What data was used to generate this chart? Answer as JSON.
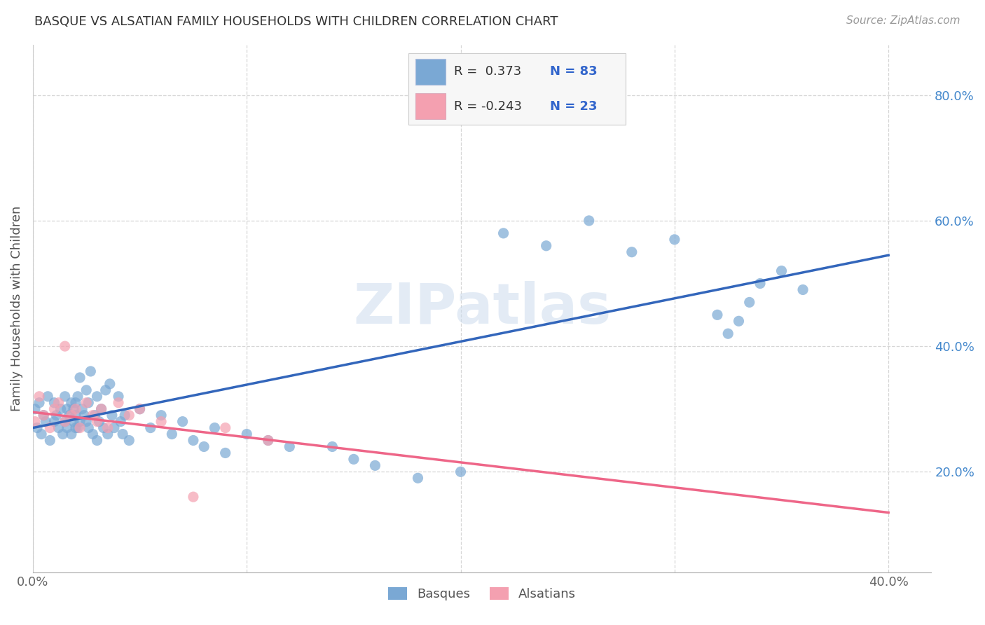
{
  "title": "BASQUE VS ALSATIAN FAMILY HOUSEHOLDS WITH CHILDREN CORRELATION CHART",
  "source": "Source: ZipAtlas.com",
  "ylabel": "Family Households with Children",
  "xlim": [
    0.0,
    0.42
  ],
  "ylim": [
    0.04,
    0.88
  ],
  "x_ticks": [
    0.0,
    0.1,
    0.2,
    0.3,
    0.4
  ],
  "x_tick_labels": [
    "0.0%",
    "",
    "",
    "",
    "40.0%"
  ],
  "y_ticks": [
    0.2,
    0.4,
    0.6,
    0.8
  ],
  "y_tick_labels": [
    "20.0%",
    "40.0%",
    "60.0%",
    "80.0%"
  ],
  "basque_color": "#7aa8d4",
  "alsatian_color": "#f4a0b0",
  "trend_basque_color": "#3366bb",
  "trend_alsatian_color": "#ee6688",
  "watermark": "ZIPatlas",
  "basque_x": [
    0.001,
    0.002,
    0.003,
    0.004,
    0.005,
    0.006,
    0.007,
    0.008,
    0.01,
    0.01,
    0.011,
    0.012,
    0.013,
    0.014,
    0.015,
    0.015,
    0.016,
    0.016,
    0.017,
    0.018,
    0.018,
    0.019,
    0.019,
    0.02,
    0.02,
    0.02,
    0.021,
    0.021,
    0.022,
    0.022,
    0.023,
    0.024,
    0.025,
    0.025,
    0.026,
    0.026,
    0.027,
    0.028,
    0.029,
    0.03,
    0.03,
    0.031,
    0.032,
    0.033,
    0.034,
    0.035,
    0.036,
    0.037,
    0.038,
    0.04,
    0.041,
    0.042,
    0.043,
    0.045,
    0.05,
    0.055,
    0.06,
    0.065,
    0.07,
    0.075,
    0.08,
    0.085,
    0.09,
    0.1,
    0.11,
    0.12,
    0.14,
    0.15,
    0.16,
    0.18,
    0.2,
    0.22,
    0.24,
    0.26,
    0.28,
    0.3,
    0.32,
    0.325,
    0.33,
    0.335,
    0.34,
    0.35,
    0.36
  ],
  "basque_y": [
    0.3,
    0.27,
    0.31,
    0.26,
    0.29,
    0.28,
    0.32,
    0.25,
    0.31,
    0.28,
    0.29,
    0.27,
    0.3,
    0.26,
    0.32,
    0.28,
    0.3,
    0.27,
    0.29,
    0.26,
    0.31,
    0.28,
    0.3,
    0.27,
    0.29,
    0.31,
    0.32,
    0.27,
    0.35,
    0.28,
    0.3,
    0.29,
    0.28,
    0.33,
    0.27,
    0.31,
    0.36,
    0.26,
    0.29,
    0.25,
    0.32,
    0.28,
    0.3,
    0.27,
    0.33,
    0.26,
    0.34,
    0.29,
    0.27,
    0.32,
    0.28,
    0.26,
    0.29,
    0.25,
    0.3,
    0.27,
    0.29,
    0.26,
    0.28,
    0.25,
    0.24,
    0.27,
    0.23,
    0.26,
    0.25,
    0.24,
    0.24,
    0.22,
    0.21,
    0.19,
    0.2,
    0.58,
    0.56,
    0.6,
    0.55,
    0.57,
    0.45,
    0.42,
    0.44,
    0.47,
    0.5,
    0.52,
    0.49
  ],
  "alsatian_x": [
    0.001,
    0.003,
    0.005,
    0.008,
    0.01,
    0.012,
    0.015,
    0.015,
    0.018,
    0.02,
    0.022,
    0.025,
    0.028,
    0.03,
    0.032,
    0.035,
    0.04,
    0.045,
    0.05,
    0.06,
    0.075,
    0.09,
    0.11
  ],
  "alsatian_y": [
    0.28,
    0.32,
    0.29,
    0.27,
    0.3,
    0.31,
    0.28,
    0.4,
    0.29,
    0.3,
    0.27,
    0.31,
    0.29,
    0.28,
    0.3,
    0.27,
    0.31,
    0.29,
    0.3,
    0.28,
    0.16,
    0.27,
    0.25
  ],
  "trend_basque_x0": 0.0,
  "trend_basque_x1": 0.4,
  "trend_basque_y0": 0.27,
  "trend_basque_y1": 0.545,
  "trend_alsatian_x0": 0.0,
  "trend_alsatian_x1": 0.4,
  "trend_alsatian_y0": 0.295,
  "trend_alsatian_y1": 0.135
}
